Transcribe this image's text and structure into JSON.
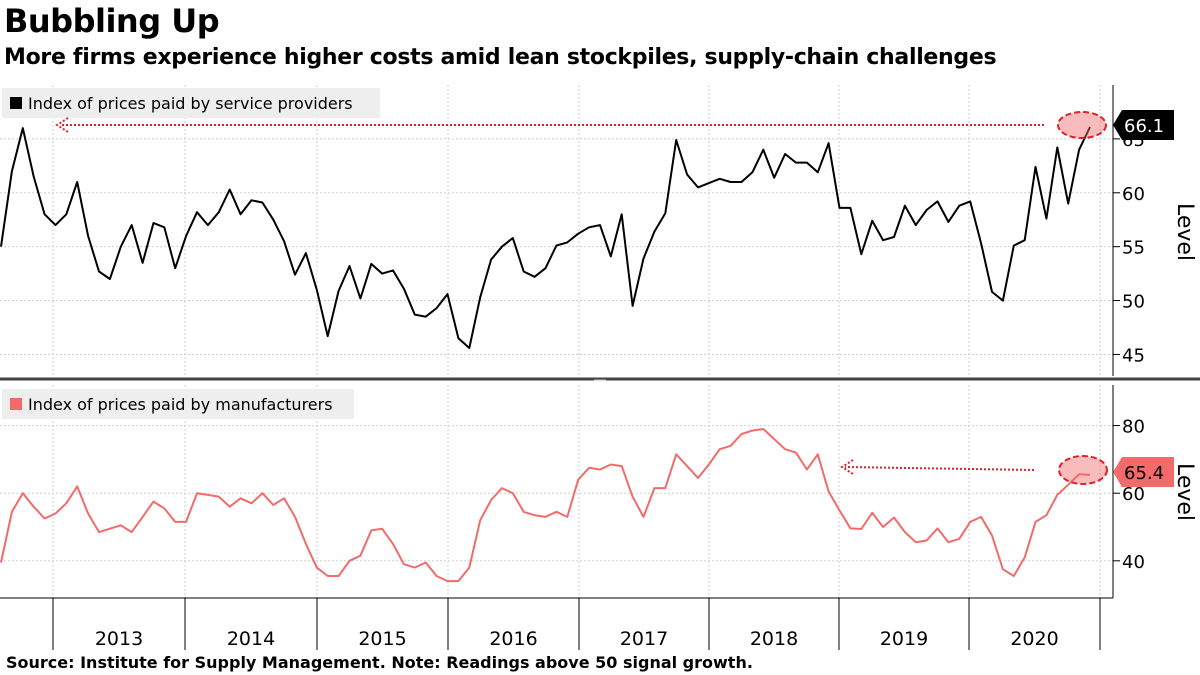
{
  "title": "Bubbling Up",
  "subtitle": "More firms experience higher costs amid lean stockpiles, supply-chain challenges",
  "source": "Source: Institute for Supply Management. Note: Readings above 50 signal growth.",
  "colors": {
    "services": "#000000",
    "manufacturing": "#f26b6b",
    "annotation": "#e0202a",
    "grid": "#cfcfcf"
  },
  "chart_data": [
    {
      "type": "line",
      "panel": "top",
      "legend": "top-left",
      "grid": true,
      "ylabel": "Level",
      "ylim": [
        43,
        70
      ],
      "yticks": [
        45,
        50,
        55,
        60,
        65
      ],
      "last_value_label": "66.1",
      "series": [
        {
          "name": "Index of prices paid by service providers",
          "values": [
            55.0,
            62.0,
            66.0,
            61.5,
            58.0,
            57.0,
            58.0,
            61.0,
            56.0,
            52.7,
            52.0,
            55.0,
            57.0,
            53.5,
            57.2,
            56.8,
            53.0,
            56.0,
            58.2,
            57.0,
            58.2,
            60.3,
            58.0,
            59.3,
            59.1,
            57.5,
            55.5,
            52.4,
            54.4,
            51.0,
            46.7,
            50.9,
            53.2,
            50.2,
            53.4,
            52.5,
            52.8,
            51.1,
            48.7,
            48.5,
            49.3,
            50.6,
            46.5,
            45.6,
            50.3,
            53.8,
            55.0,
            55.8,
            52.7,
            52.2,
            53.0,
            55.1,
            55.4,
            56.2,
            56.8,
            57.0,
            54.1,
            58.0,
            49.5,
            53.9,
            56.4,
            58.1,
            64.9,
            61.7,
            60.5,
            60.9,
            61.3,
            61.0,
            61.0,
            61.9,
            64.0,
            61.4,
            63.6,
            62.8,
            62.8,
            61.9,
            64.6,
            58.6,
            58.6,
            54.3,
            57.4,
            55.6,
            55.9,
            58.8,
            57.0,
            58.4,
            59.2,
            57.3,
            58.8,
            59.2,
            55.3,
            50.8,
            50.0,
            55.1,
            55.6,
            62.4,
            57.6,
            64.2,
            59.0,
            64.0,
            66.1
          ]
        }
      ],
      "x_labels": [
        "2013",
        "2014",
        "2015",
        "2016",
        "2017",
        "2018",
        "2019",
        "2020"
      ]
    },
    {
      "type": "line",
      "panel": "bottom",
      "legend": "top-left",
      "grid": true,
      "ylabel": "Level",
      "ylim": [
        29,
        92
      ],
      "yticks": [
        40,
        60,
        80
      ],
      "last_value_label": "65.4",
      "series": [
        {
          "name": "Index of prices paid by manufacturers",
          "values": [
            39.5,
            54.5,
            60.0,
            56.0,
            52.5,
            54.0,
            57.0,
            62.0,
            54.0,
            48.5,
            49.5,
            50.5,
            48.5,
            53.0,
            57.5,
            55.5,
            51.5,
            51.5,
            60.0,
            59.5,
            59.0,
            56.0,
            58.5,
            57.0,
            60.0,
            56.5,
            58.5,
            53.0,
            45.0,
            38.0,
            35.5,
            35.5,
            40.0,
            41.5,
            49.0,
            49.5,
            45.0,
            39.0,
            38.0,
            39.5,
            35.5,
            34.0,
            34.0,
            38.0,
            52.0,
            58.0,
            61.5,
            60.0,
            54.5,
            53.5,
            53.0,
            54.5,
            53.0,
            64.0,
            67.5,
            67.0,
            68.5,
            68.0,
            59.0,
            53.0,
            61.5,
            61.5,
            71.5,
            68.0,
            64.5,
            68.5,
            73.0,
            74.0,
            77.5,
            78.5,
            79.0,
            76.0,
            73.0,
            72.0,
            67.0,
            71.5,
            60.5,
            54.9,
            49.6,
            49.4,
            54.2,
            50.0,
            52.8,
            48.5,
            45.5,
            46.0,
            49.6,
            45.5,
            46.5,
            51.5,
            53.0,
            47.5,
            37.5,
            35.5,
            41.0,
            51.5,
            53.5,
            59.5,
            62.5,
            65.6,
            65.4
          ]
        }
      ],
      "x_labels": [
        "2013",
        "2014",
        "2015",
        "2016",
        "2017",
        "2018",
        "2019",
        "2020"
      ]
    }
  ]
}
